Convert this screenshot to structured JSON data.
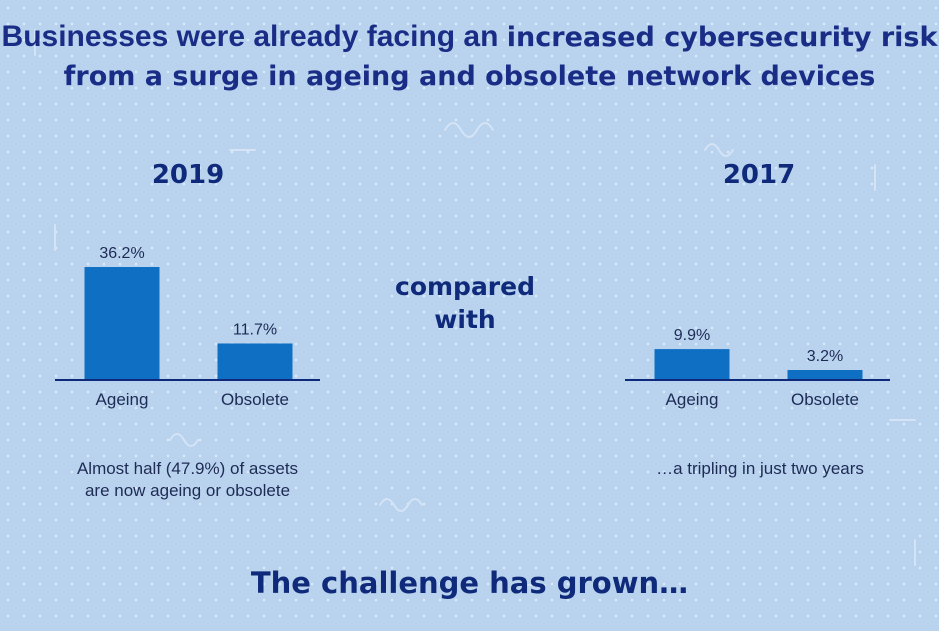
{
  "headline": {
    "lead": "Businesses were already facing an ",
    "emphasis": "increased cybersecurity risk from a surge in ageing and obsolete network devices"
  },
  "center_text": {
    "line1": "compared",
    "line2": "with"
  },
  "notes": {
    "left_line1": "Almost half (47.9%) of assets",
    "left_line2": "are now ageing or obsolete",
    "right": "…a tripling in just two years"
  },
  "footer": "The challenge has grown…",
  "colors": {
    "bar": "#0f6fc2",
    "axis": "#0f2a7a",
    "background": "#b9d3ee",
    "title": "#1a2d86"
  },
  "chart_data": [
    {
      "type": "bar",
      "title": "2019",
      "categories": [
        "Ageing",
        "Obsolete"
      ],
      "values": [
        36.2,
        11.7
      ],
      "value_labels": [
        "36.2%",
        "11.7%"
      ],
      "ylim": [
        0,
        36.2
      ],
      "grid": false,
      "unit": "%"
    },
    {
      "type": "bar",
      "title": "2017",
      "categories": [
        "Ageing",
        "Obsolete"
      ],
      "values": [
        9.9,
        3.2
      ],
      "value_labels": [
        "9.9%",
        "3.2%"
      ],
      "ylim": [
        0,
        36.2
      ],
      "grid": false,
      "unit": "%"
    }
  ]
}
